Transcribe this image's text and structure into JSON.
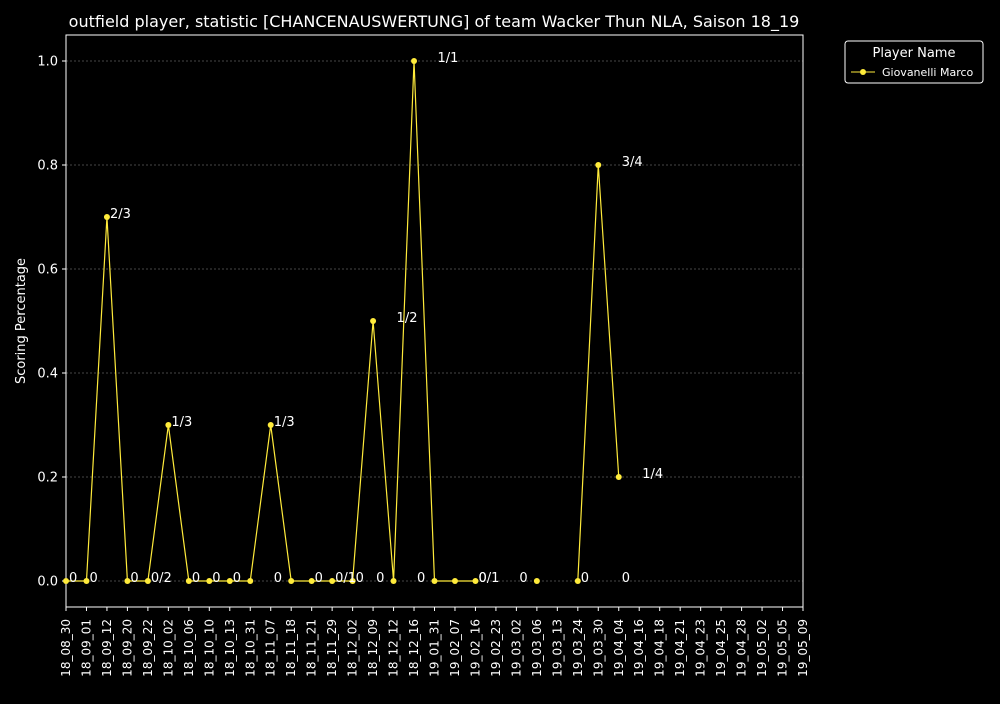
{
  "chart_data": {
    "type": "line",
    "title": "outfield player, statistic [CHANCENAUSWERTUNG] of team Wacker Thun NLA, Saison 18_19",
    "xlabel": "",
    "ylabel": "Scoring Percentage",
    "ylim": [
      -0.05,
      1.05
    ],
    "yticks": [
      "0.0",
      "0.2",
      "0.4",
      "0.6",
      "0.8",
      "1.0"
    ],
    "grid": true,
    "legend": {
      "title": "Player Name",
      "placement": "outside-top-right"
    },
    "categories": [
      "18_08_30",
      "18_09_01",
      "18_09_12",
      "18_09_20",
      "18_09_22",
      "18_10_02",
      "18_10_06",
      "18_10_10",
      "18_10_13",
      "18_10_31",
      "18_11_07",
      "18_11_18",
      "18_11_21",
      "18_11_29",
      "18_12_02",
      "18_12_09",
      "18_12_12",
      "18_12_16",
      "19_01_31",
      "19_02_07",
      "19_02_16",
      "19_02_23",
      "19_03_02",
      "19_03_06",
      "19_03_13",
      "19_03_24",
      "19_03_30",
      "19_04_04",
      "19_04_16",
      "19_04_18",
      "19_04_21",
      "19_04_23",
      "19_04_25",
      "19_04_28",
      "19_05_02",
      "19_05_05",
      "19_05_09"
    ],
    "series": [
      {
        "name": "Giovanelli Marco",
        "color": "#ffeb3b",
        "segments": [
          [
            [
              0,
              0
            ],
            [
              1,
              0
            ],
            [
              2,
              0.7
            ],
            [
              3,
              0
            ],
            [
              4,
              0
            ],
            [
              5,
              0.3
            ],
            [
              6,
              0
            ],
            [
              7,
              0
            ],
            [
              8,
              0
            ],
            [
              9,
              0
            ],
            [
              10,
              0.3
            ],
            [
              11,
              0
            ],
            [
              12,
              0
            ],
            [
              13,
              0
            ],
            [
              14,
              0
            ],
            [
              15,
              0.5
            ],
            [
              16,
              0
            ],
            [
              17,
              1.0
            ],
            [
              18,
              0
            ],
            [
              19,
              0
            ],
            [
              20,
              0
            ]
          ],
          [
            [
              23,
              0
            ]
          ],
          [
            [
              25,
              0
            ],
            [
              26,
              0.8
            ],
            [
              27,
              0.2
            ]
          ]
        ]
      }
    ],
    "annotations": [
      {
        "text": "0",
        "x": 0,
        "y": 0
      },
      {
        "text": "0",
        "x": 1,
        "y": 0
      },
      {
        "text": "2/3",
        "x": 2,
        "y": 0.7
      },
      {
        "text": "0",
        "x": 3,
        "y": 0
      },
      {
        "text": "0/2",
        "x": 4,
        "y": 0
      },
      {
        "text": "1/3",
        "x": 5,
        "y": 0.3
      },
      {
        "text": "0",
        "x": 6,
        "y": 0
      },
      {
        "text": "0",
        "x": 7,
        "y": 0
      },
      {
        "text": "0",
        "x": 8,
        "y": 0
      },
      {
        "text": "0",
        "x": 10,
        "y": 0
      },
      {
        "text": "1/3",
        "x": 10,
        "y": 0.3
      },
      {
        "text": "0",
        "x": 12,
        "y": 0
      },
      {
        "text": "0/1",
        "x": 13,
        "y": 0
      },
      {
        "text": "0",
        "x": 14,
        "y": 0
      },
      {
        "text": "0",
        "x": 15,
        "y": 0
      },
      {
        "text": "1/2",
        "x": 16,
        "y": 0.5
      },
      {
        "text": "0",
        "x": 17,
        "y": 0
      },
      {
        "text": "1/1",
        "x": 18,
        "y": 1.0
      },
      {
        "text": "0/1",
        "x": 20,
        "y": 0
      },
      {
        "text": "0",
        "x": 20,
        "y": 0
      },
      {
        "text": "0",
        "x": 22,
        "y": 0
      },
      {
        "text": "0",
        "x": 25,
        "y": 0
      },
      {
        "text": "3/4",
        "x": 27,
        "y": 0.8
      },
      {
        "text": "0",
        "x": 27,
        "y": 0
      },
      {
        "text": "1/4",
        "x": 28,
        "y": 0.2
      }
    ]
  }
}
